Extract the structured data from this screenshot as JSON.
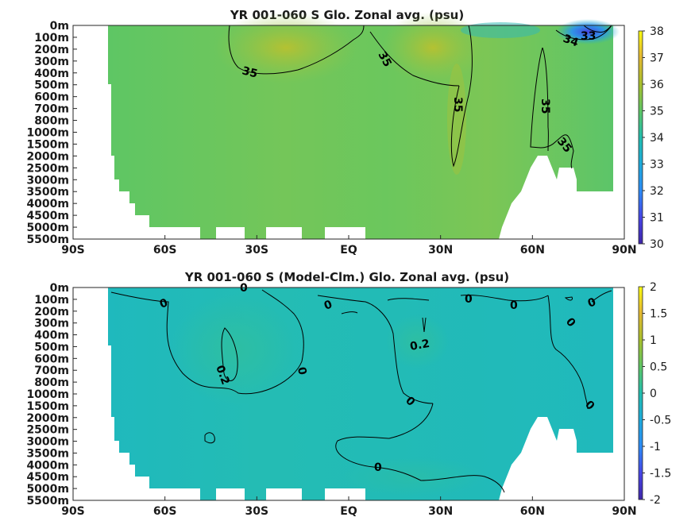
{
  "chart_data": [
    {
      "type": "heatmap",
      "title": "YR 001-060 S Glo. Zonal avg. (psu)",
      "x_tick_labels": [
        "90S",
        "60S",
        "30S",
        "EQ",
        "30N",
        "60N",
        "90N"
      ],
      "x_ticks": [
        -90,
        -60,
        -30,
        0,
        30,
        60,
        90
      ],
      "y_tick_labels": [
        "0m",
        "100m",
        "200m",
        "300m",
        "400m",
        "500m",
        "600m",
        "700m",
        "800m",
        "1000m",
        "1500m",
        "2000m",
        "2500m",
        "3000m",
        "3500m",
        "4000m",
        "4500m",
        "5000m",
        "5500m"
      ],
      "colorbar": {
        "min": 30,
        "max": 38,
        "tick_labels": [
          "38",
          "37",
          "36",
          "35",
          "34",
          "33",
          "32",
          "31",
          "30"
        ]
      },
      "contour_labels": [
        "35",
        "35",
        "35",
        "35",
        "35",
        "34",
        "33"
      ],
      "approx_values": {
        "deep_mean": 34.7,
        "subtropical_max": 36.6,
        "arctic_surface_min": 31.0
      }
    },
    {
      "type": "heatmap",
      "title": "YR 001-060 S (Model-Clm.) Glo. Zonal avg. (psu)",
      "x_tick_labels": [
        "90S",
        "60S",
        "30S",
        "EQ",
        "30N",
        "60N",
        "90N"
      ],
      "x_ticks": [
        -90,
        -60,
        -30,
        0,
        30,
        60,
        90
      ],
      "y_tick_labels": [
        "0m",
        "100m",
        "200m",
        "300m",
        "400m",
        "500m",
        "600m",
        "700m",
        "800m",
        "1000m",
        "1500m",
        "2000m",
        "2500m",
        "3000m",
        "3500m",
        "4000m",
        "4500m",
        "5000m",
        "5500m"
      ],
      "colorbar": {
        "min": -2,
        "max": 2,
        "tick_labels": [
          "2",
          "1.5",
          "1",
          "0.5",
          "0",
          "-0.5",
          "-1",
          "-1.5",
          "-2"
        ]
      },
      "contour_labels": [
        "0",
        "0",
        "0",
        "0",
        "0",
        "0",
        "0",
        "0",
        "0",
        "0",
        "0",
        "0.2",
        "0.2"
      ],
      "approx_values": {
        "background": 0.05,
        "positive_max": 0.3
      }
    }
  ],
  "colors": {
    "map_low": "#3e26a8",
    "map_mid": "#21bcae",
    "map_high": "#f9fb0e",
    "axes": "#262626"
  }
}
